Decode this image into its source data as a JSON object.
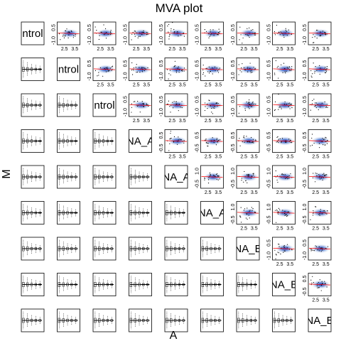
{
  "chart_data": {
    "type": "scatter",
    "title": "MVA plot",
    "xlabel": "A",
    "ylabel": "M",
    "panel_labels": [
      "Control",
      "Control",
      "Control",
      "RNA_A",
      "RNA_A",
      "RNA_A",
      "RNA_B",
      "RNA_B",
      "RNA_B"
    ],
    "diagonal_visible_text": [
      "ntrol",
      "ntrol",
      "ntrol",
      "NA_A",
      "NA_A",
      "NA_A",
      "NA_B",
      "NA_B",
      "NA_B"
    ],
    "x_ticks": [
      "2.5",
      "3.5"
    ],
    "x_range": [
      1.8,
      4.0
    ],
    "upper_panels": {
      "display": "smoothed scatter (blue density) with fitted loess line (red)",
      "y_ticks_by_row": [
        [
          "0.5",
          "-1.0"
        ],
        [
          "0.5",
          "-1.0"
        ],
        [
          "0.5",
          "-1.0"
        ],
        [
          "0.5",
          "-0.5"
        ],
        [
          "1.0",
          "-0.5"
        ],
        [
          "1.0",
          "-0.5"
        ],
        [
          "0.5",
          "-1.0"
        ],
        [
          "0.5",
          "-0.5"
        ]
      ],
      "y_range": [
        -1.3,
        1.3
      ]
    },
    "lower_panels": {
      "display": "boxplots of M by A bins",
      "boxes": [
        {
          "x": 2.0,
          "whisker": [
            -1.0,
            1.0
          ],
          "box": [
            -0.25,
            0.25
          ],
          "median": 0.0
        },
        {
          "x": 2.4,
          "whisker": [
            -0.8,
            0.8
          ],
          "box": [
            -0.2,
            0.2
          ],
          "median": 0.0
        },
        {
          "x": 2.8,
          "whisker": [
            -0.6,
            0.6
          ],
          "box": [
            -0.15,
            0.15
          ],
          "median": 0.0
        },
        {
          "x": 3.2,
          "whisker": [
            -0.5,
            0.5
          ],
          "box": [
            -0.12,
            0.12
          ],
          "median": 0.0
        },
        {
          "x": 3.6,
          "whisker": [
            -0.4,
            0.4
          ],
          "box": [
            -0.1,
            0.1
          ],
          "median": 0.0
        }
      ]
    },
    "colors": {
      "density_dark": "#2233b5",
      "density_light": "#dfe8f6",
      "loess_line": "#ff0000",
      "points": "#000000",
      "frame": "#000000"
    }
  }
}
